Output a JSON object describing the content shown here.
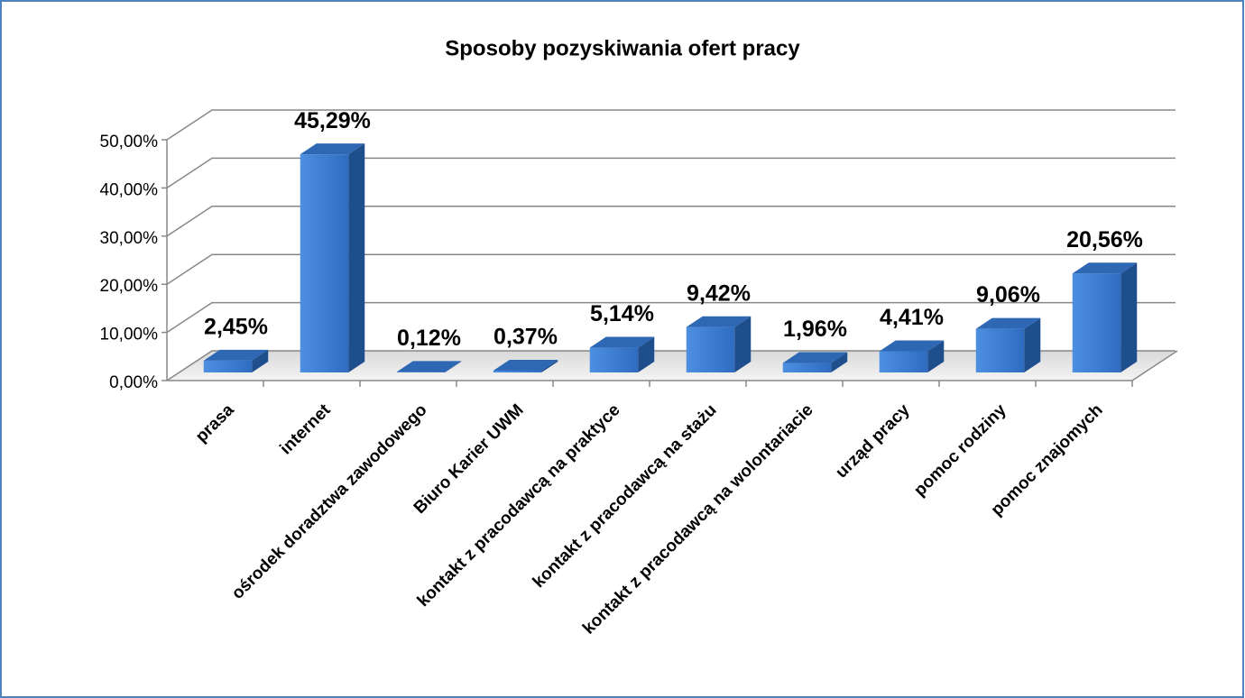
{
  "chart_data": {
    "type": "bar3d",
    "title": "Sposoby pozyskiwania ofert pracy",
    "categories": [
      "prasa",
      "internet",
      "ośrodek doradztwa zawodowego",
      "Biuro Karier UWM",
      "kontakt z pracodawcą na praktyce",
      "kontakt z pracodawcą na stażu",
      "kontakt z pracodawcą na wolontariacie",
      "urząd pracy",
      "pomoc rodziny",
      "pomoc znajomych"
    ],
    "values": [
      2.45,
      45.29,
      0.12,
      0.37,
      5.14,
      9.42,
      1.96,
      4.41,
      9.06,
      20.56
    ],
    "value_labels": [
      "2,45%",
      "45,29%",
      "0,12%",
      "0,37%",
      "5,14%",
      "9,42%",
      "1,96%",
      "4,41%",
      "9,06%",
      "20,56%"
    ],
    "color": "#3a7bd5",
    "ylim": [
      0,
      50
    ],
    "yticks": [
      {
        "value": 0,
        "label": "0,00%"
      },
      {
        "value": 10,
        "label": "10,00%"
      },
      {
        "value": 20,
        "label": "20,00%"
      },
      {
        "value": 30,
        "label": "30,00%"
      },
      {
        "value": 40,
        "label": "40,00%"
      },
      {
        "value": 50,
        "label": "50,00%"
      }
    ],
    "grid": true
  }
}
